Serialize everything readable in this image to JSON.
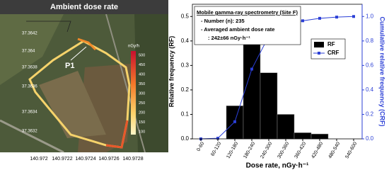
{
  "map": {
    "title": "Ambient dose rate",
    "lat_labels": [
      "37.3642",
      "37.364",
      "37.3638",
      "37.3636",
      "37.3634",
      "37.3632"
    ],
    "lon_labels": [
      "140.972",
      "140.9722",
      "140.9724",
      "140.9726",
      "140.9728"
    ],
    "colorbar_unit": "nGy/h",
    "colorbar_labels": [
      "500",
      "450",
      "400",
      "350",
      "300",
      "250",
      "200",
      "150",
      "100"
    ],
    "marker": "P1"
  },
  "chart_data": {
    "type": "bar",
    "annotation": [
      "Mobile gamma-ray spectrometry (Site F)",
      "- Number (n): 235",
      "- Averaged ambient dose rate",
      ": 242±66 nGy·h⁻¹"
    ],
    "x_label": "Dose rate, nGy·h⁻¹",
    "y_label": "Relative frequency (RF)",
    "y2_label": "Cumulative relative frequency (CRF)",
    "categories": [
      "0-60",
      "60-120",
      "120-180",
      "180-240",
      "240-300",
      "300-360",
      "360-420",
      "420-480",
      "480-540",
      "540-600"
    ],
    "series": [
      {
        "name": "RF",
        "type": "bar",
        "color": "#000000",
        "values": [
          0,
          0,
          0.135,
          0.43,
          0.27,
          0.1,
          0.025,
          0.02,
          0,
          0
        ]
      },
      {
        "name": "CRF",
        "type": "line",
        "axis": "y2",
        "color": "#2b3fd6",
        "values": [
          0,
          0.005,
          0.14,
          0.57,
          0.84,
          0.935,
          0.965,
          0.985,
          0.995,
          1.0
        ]
      }
    ],
    "ylim": [
      0,
      0.55
    ],
    "yticks": [
      {
        "value": 0,
        "label": "0.0"
      },
      0.1,
      0.2,
      0.3,
      0.4,
      0.5
    ],
    "y2lim": [
      0,
      1.1
    ],
    "y2ticks": [
      {
        "value": 0,
        "label": "0.0"
      },
      0.2,
      0.4,
      0.6,
      0.8,
      {
        "value": 1,
        "label": "1.0"
      }
    ],
    "legend": "upper right"
  }
}
